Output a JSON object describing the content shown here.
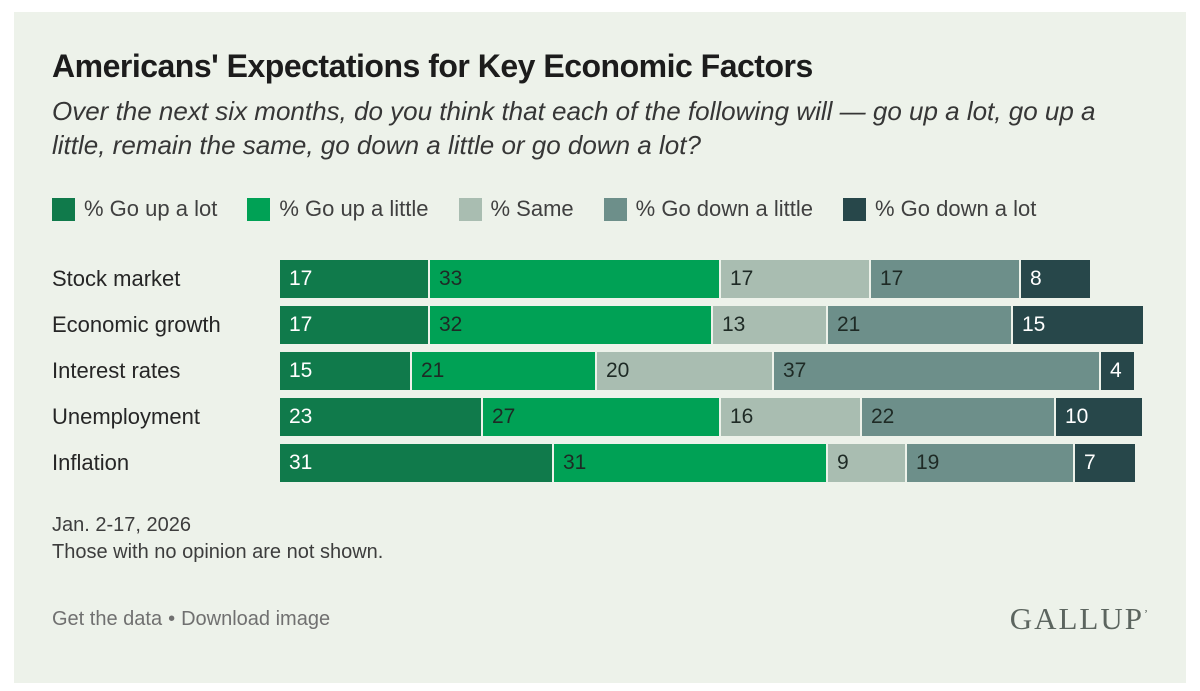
{
  "header": {
    "title": "Americans' Expectations for Key Economic Factors",
    "subtitle": "Over the next six months, do you think that each of the following will — go up a lot, go up a little, remain the same, go down a little or go down a lot?"
  },
  "chart_data": {
    "type": "bar",
    "orientation": "horizontal-stacked",
    "title": "Americans' Expectations for Key Economic Factors",
    "categories": [
      "Stock market",
      "Economic growth",
      "Interest rates",
      "Unemployment",
      "Inflation"
    ],
    "series": [
      {
        "name": "% Go up a lot",
        "color": "#107a4b",
        "label_color": "#ffffff",
        "values": [
          17,
          17,
          15,
          23,
          31
        ]
      },
      {
        "name": "% Go up a little",
        "color": "#00a155",
        "label_color": "#1e2a25",
        "values": [
          33,
          32,
          21,
          27,
          31
        ]
      },
      {
        "name": "% Same",
        "color": "#a9bdb1",
        "label_color": "#1e2a25",
        "values": [
          17,
          13,
          20,
          16,
          9
        ]
      },
      {
        "name": "% Go down a little",
        "color": "#6d8f8a",
        "label_color": "#1e2a25",
        "values": [
          17,
          21,
          37,
          22,
          19
        ]
      },
      {
        "name": "% Go down a lot",
        "color": "#27474a",
        "label_color": "#ffffff",
        "values": [
          8,
          15,
          4,
          10,
          7
        ]
      }
    ],
    "xlim": [
      0,
      100
    ],
    "value_labels": "inside-start",
    "legend_position": "top",
    "grid": false
  },
  "footnotes": {
    "date": "Jan. 2-17, 2026",
    "note": "Those with no opinion are not shown."
  },
  "footer": {
    "links": [
      "Get the data",
      "Download image"
    ],
    "separator": "•",
    "brand": "GALLUP",
    "brand_mark": "’"
  },
  "colors": {
    "card_background": "#edf2ea",
    "page_background": "#ffffff"
  }
}
